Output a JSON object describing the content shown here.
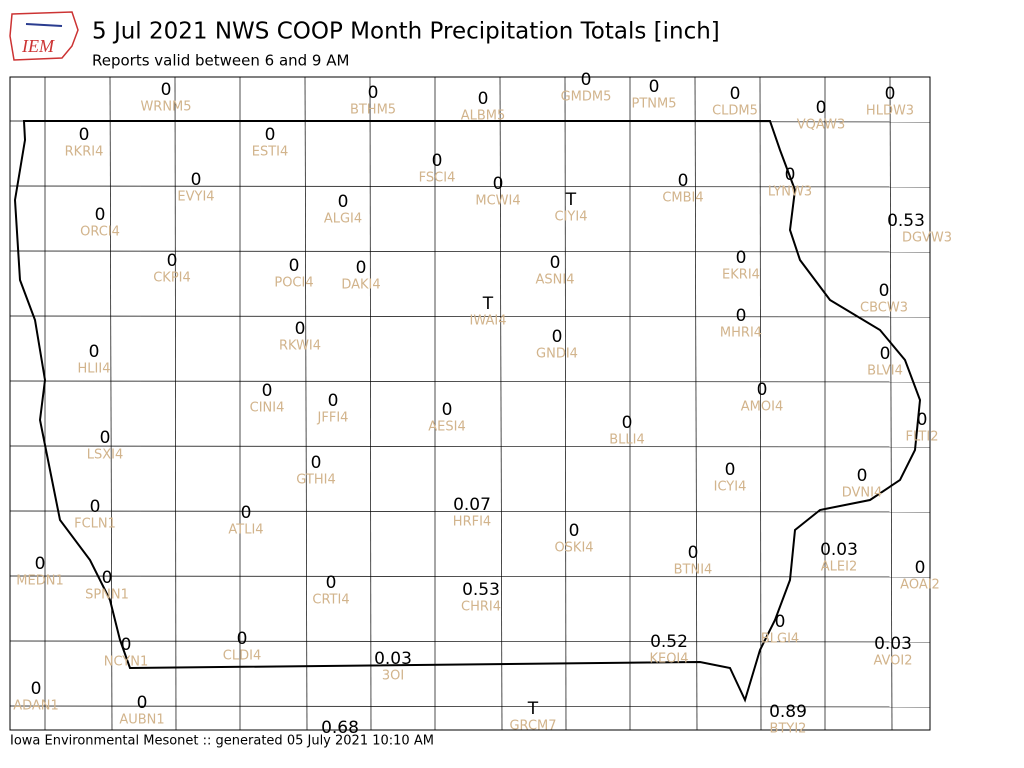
{
  "header": {
    "title": "5 Jul 2021 NWS COOP Month Precipitation Totals [inch]",
    "subtitle": "Reports valid between 6 and 9 AM",
    "logo": "IEM"
  },
  "footer": "Iowa Environmental Mesonet :: generated 05 July 2021 10:10 AM",
  "stations": [
    {
      "value": 0,
      "id": "WRNM5"
    },
    {
      "value": 0,
      "id": "BTHM5"
    },
    {
      "value": 0,
      "id": "ALBM5"
    },
    {
      "value": 0,
      "id": "GMDM5"
    },
    {
      "value": 0,
      "id": "PTNM5"
    },
    {
      "value": 0,
      "id": "CLDM5"
    },
    {
      "value": 0,
      "id": "VQAW3"
    },
    {
      "value": 0,
      "id": "HLDW3"
    },
    {
      "value": 0,
      "id": "RKRI4"
    },
    {
      "value": 0,
      "id": "ESTI4"
    },
    {
      "value": 0,
      "id": "FSCI4"
    },
    {
      "value": 0,
      "id": "EVYI4"
    },
    {
      "value": 0,
      "id": "MCWI4"
    },
    {
      "value": "T",
      "id": "CIYI4"
    },
    {
      "value": 0,
      "id": "CMBI4"
    },
    {
      "value": 0,
      "id": "LYNW3"
    },
    {
      "value": 0.53,
      "id": "DGVW3"
    },
    {
      "value": 0,
      "id": "ALGI4"
    },
    {
      "value": 0,
      "id": "ORCI4"
    },
    {
      "value": 0,
      "id": "CKPI4"
    },
    {
      "value": 0,
      "id": "POCI4"
    },
    {
      "value": 0,
      "id": "DAKI4"
    },
    {
      "value": 0,
      "id": "ASNI4"
    },
    {
      "value": 0,
      "id": "EKRI4"
    },
    {
      "value": 0,
      "id": "CBCW3"
    },
    {
      "value": "T",
      "id": "IWAI4"
    },
    {
      "value": 0,
      "id": "RKWI4"
    },
    {
      "value": 0,
      "id": "GNDI4"
    },
    {
      "value": 0,
      "id": "MHRI4"
    },
    {
      "value": 0,
      "id": "HLII4"
    },
    {
      "value": 0,
      "id": "BLVI4"
    },
    {
      "value": 0,
      "id": "CINI4"
    },
    {
      "value": 0,
      "id": "JFFI4"
    },
    {
      "value": 0,
      "id": "AMOI4"
    },
    {
      "value": 0,
      "id": "AESI4"
    },
    {
      "value": 0,
      "id": "FLTI2"
    },
    {
      "value": 0,
      "id": "BLLI4"
    },
    {
      "value": 0,
      "id": "LSXI4"
    },
    {
      "value": 0,
      "id": "GTHI4"
    },
    {
      "value": 0,
      "id": "ICYI4"
    },
    {
      "value": 0,
      "id": "DVNI4"
    },
    {
      "value": 0.07,
      "id": "HRFI4"
    },
    {
      "value": 0,
      "id": "FCLN1"
    },
    {
      "value": 0,
      "id": "ATLI4"
    },
    {
      "value": 0,
      "id": "OSKI4"
    },
    {
      "value": 0.03,
      "id": "ALEI2"
    },
    {
      "value": 0,
      "id": "BTNI4"
    },
    {
      "value": 0,
      "id": "MEDN1"
    },
    {
      "value": 0,
      "id": "SPNN1"
    },
    {
      "value": 0,
      "id": "AOAI2"
    },
    {
      "value": 0,
      "id": "CRTI4"
    },
    {
      "value": 0.53,
      "id": "CHRI4"
    },
    {
      "value": 0,
      "id": "BLGI4"
    },
    {
      "value": 0.52,
      "id": "KEOI4"
    },
    {
      "value": 0.03,
      "id": "AVOI2"
    },
    {
      "value": 0,
      "id": "NCYN1"
    },
    {
      "value": 0,
      "id": "CLDI4"
    },
    {
      "value": 0.03,
      "id": "3OI"
    },
    {
      "value": 0,
      "id": "ADAN1"
    },
    {
      "value": 0,
      "id": "AUBN1"
    },
    {
      "value": "T",
      "id": "GRCM7"
    },
    {
      "value": 0.89,
      "id": "BTYI2"
    },
    {
      "value": 0.68
    }
  ]
}
